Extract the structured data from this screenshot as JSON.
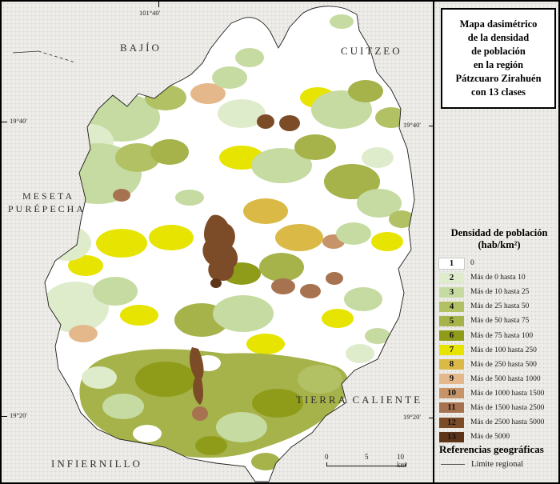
{
  "title_box": {
    "lines": [
      "Mapa dasimétrico",
      "de la densidad",
      "de población",
      "en la región",
      "Pátzcuaro Zirahuén",
      "con 13 clases"
    ]
  },
  "map": {
    "region_labels": {
      "bajio": "BAJÍO",
      "cuitzeo": "CUITZEO",
      "meseta_line1": "MESETA",
      "meseta_line2": "PURÉPECHA",
      "tierra_caliente": "TIERRA CALIENTE",
      "infiernillo": "INFIERNILLO"
    },
    "coordinates": {
      "top": "101°40'",
      "left_top": "19°40'",
      "left_bottom": "19°20'",
      "right_top": "19°40'",
      "right_bottom": "19°20'"
    },
    "scale_bar": {
      "start": "0",
      "mid": "5",
      "end": "10 km"
    }
  },
  "legend": {
    "heading_line1": "Densidad de población",
    "heading_line2": "(hab/km²)",
    "items": [
      {
        "num": "1",
        "label": "0",
        "color": "#ffffff"
      },
      {
        "num": "2",
        "label": "Más de 0 hasta 10",
        "color": "#dfeccc"
      },
      {
        "num": "3",
        "label": "Más de 10 hasta 25",
        "color": "#c6dba2"
      },
      {
        "num": "4",
        "label": "Más de 25 hasta 50",
        "color": "#b2c163"
      },
      {
        "num": "5",
        "label": "Más de 50 hasta 75",
        "color": "#a6b24a"
      },
      {
        "num": "6",
        "label": "Más de 75 hasta 100",
        "color": "#8f9c1a"
      },
      {
        "num": "7",
        "label": "Más de 100 hasta 250",
        "color": "#e6e400"
      },
      {
        "num": "8",
        "label": "Más de 250 hasta 500",
        "color": "#dbb947"
      },
      {
        "num": "9",
        "label": "Más de 500 hasta 1000",
        "color": "#e5b88b"
      },
      {
        "num": "10",
        "label": "Más de 1000 hasta 1500",
        "color": "#c69468"
      },
      {
        "num": "11",
        "label": "Más de 1500 hasta 2500",
        "color": "#a7724f"
      },
      {
        "num": "12",
        "label": "Más de 2500 hasta 5000",
        "color": "#7c4b28"
      },
      {
        "num": "13",
        "label": "Más de 5000",
        "color": "#5e3418"
      }
    ]
  },
  "references": {
    "heading": "Referencias geográficas",
    "items": [
      {
        "label": "Límite regional",
        "symbol": "line"
      }
    ]
  }
}
